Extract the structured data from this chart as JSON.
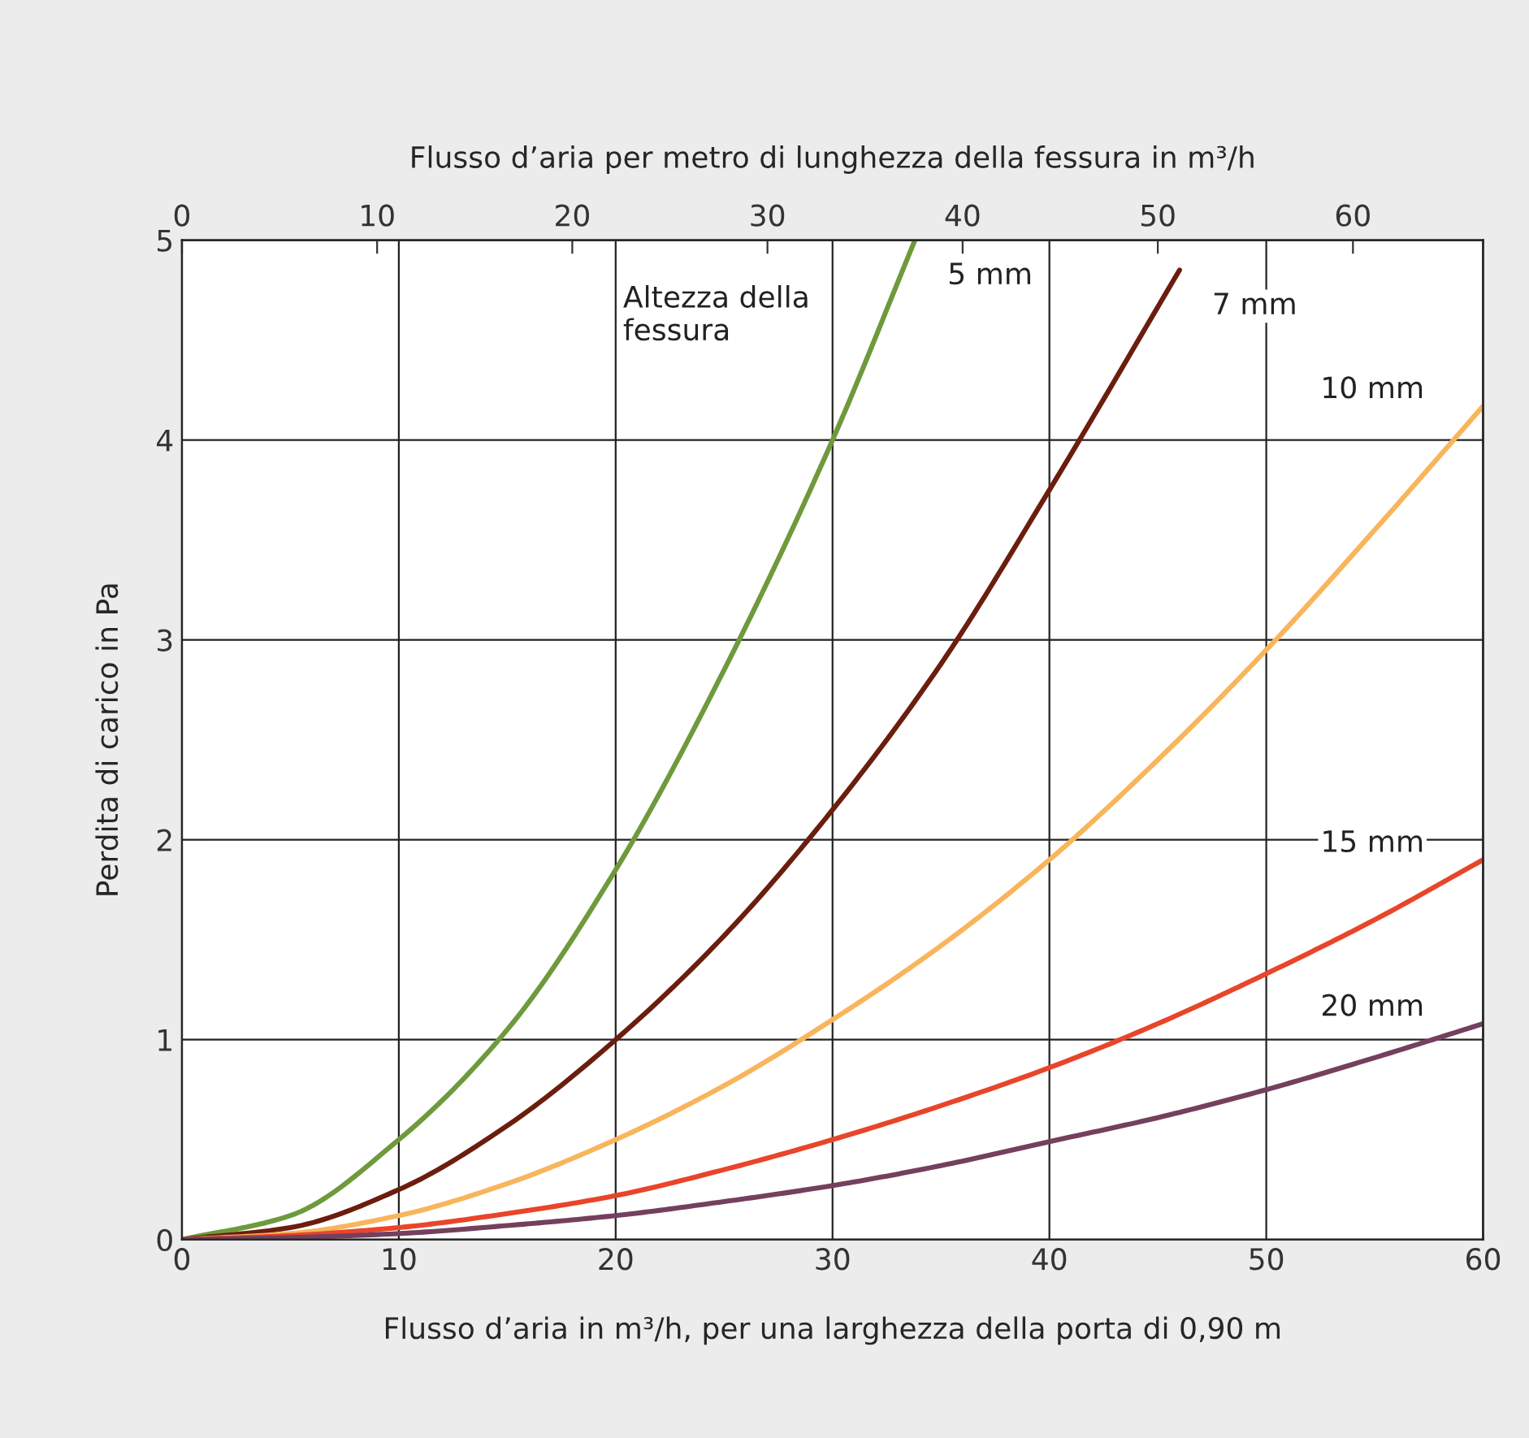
{
  "chart_data": {
    "type": "line",
    "xlabel": "Flusso d’aria in m³/h, per una larghezza della porta di 0,90 m",
    "ylabel": "Perdita di carico in Pa",
    "x2label": "Flusso d’aria per metro di lunghezza della fessura in m³/h",
    "xlim": [
      0,
      60
    ],
    "xticks": [
      0,
      10,
      20,
      30,
      40,
      50,
      60
    ],
    "ylim": [
      0,
      5
    ],
    "yticks": [
      0,
      1,
      2,
      3,
      4,
      5
    ],
    "x2lim": [
      0,
      66.67
    ],
    "x2ticks": [
      0,
      10,
      20,
      30,
      40,
      50,
      60
    ],
    "grid": true,
    "legend": false,
    "line_style": "solid",
    "series": [
      {
        "name": "5 mm",
        "color": "#6e9a3c",
        "x": [
          0,
          5,
          10,
          15,
          20,
          25,
          30,
          33.8
        ],
        "values": [
          0,
          0.12,
          0.5,
          1.05,
          1.85,
          2.85,
          4.0,
          5.0
        ]
      },
      {
        "name": "7 mm",
        "color": "#6b1d0e",
        "x": [
          0,
          5,
          10,
          15,
          20,
          25,
          30,
          35,
          40,
          46
        ],
        "values": [
          0,
          0.06,
          0.25,
          0.57,
          1.0,
          1.52,
          2.15,
          2.88,
          3.75,
          4.85
        ]
      },
      {
        "name": "10 mm",
        "color": "#f8b55c",
        "x": [
          0,
          5,
          10,
          15,
          20,
          25,
          30,
          35,
          40,
          45,
          50,
          55,
          60
        ],
        "values": [
          0,
          0.03,
          0.12,
          0.28,
          0.5,
          0.77,
          1.1,
          1.47,
          1.9,
          2.4,
          2.95,
          3.55,
          4.17
        ]
      },
      {
        "name": "15 mm",
        "color": "#e8452a",
        "x": [
          0,
          5,
          10,
          15,
          20,
          25,
          30,
          35,
          40,
          45,
          50,
          55,
          60
        ],
        "values": [
          0,
          0.02,
          0.06,
          0.13,
          0.22,
          0.35,
          0.5,
          0.67,
          0.86,
          1.08,
          1.33,
          1.6,
          1.9
        ]
      },
      {
        "name": "20 mm",
        "color": "#74405e",
        "x": [
          0,
          5,
          10,
          15,
          20,
          25,
          30,
          35,
          40,
          45,
          50,
          55,
          60
        ],
        "values": [
          0,
          0.01,
          0.03,
          0.07,
          0.12,
          0.19,
          0.27,
          0.37,
          0.49,
          0.61,
          0.75,
          0.91,
          1.08
        ]
      }
    ],
    "annotations": [
      "Altezza della\nfessura"
    ]
  }
}
